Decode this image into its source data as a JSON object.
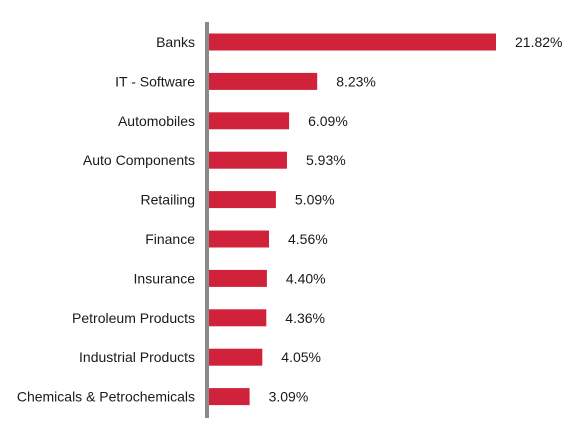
{
  "chart_data": {
    "type": "bar",
    "orientation": "horizontal",
    "categories": [
      "Banks",
      "IT - Software",
      "Automobiles",
      "Auto Components",
      "Retailing",
      "Finance",
      "Insurance",
      "Petroleum Products",
      "Industrial Products",
      "Chemicals & Petrochemicals"
    ],
    "values": [
      21.82,
      8.23,
      6.09,
      5.93,
      5.09,
      4.56,
      4.4,
      4.36,
      4.05,
      3.09
    ],
    "value_labels": [
      "21.82%",
      "8.23%",
      "6.09%",
      "5.93%",
      "5.09%",
      "4.56%",
      "4.40%",
      "4.36%",
      "4.05%",
      "3.09%"
    ],
    "unit": "%",
    "title": "",
    "xlabel": "",
    "ylabel": "",
    "xlim": [
      0,
      21.82
    ],
    "grid": false,
    "legend": "none",
    "colors": {
      "bar": "#d0223a",
      "axis": "#8a8a8a",
      "text": "#1a1a1a"
    }
  }
}
